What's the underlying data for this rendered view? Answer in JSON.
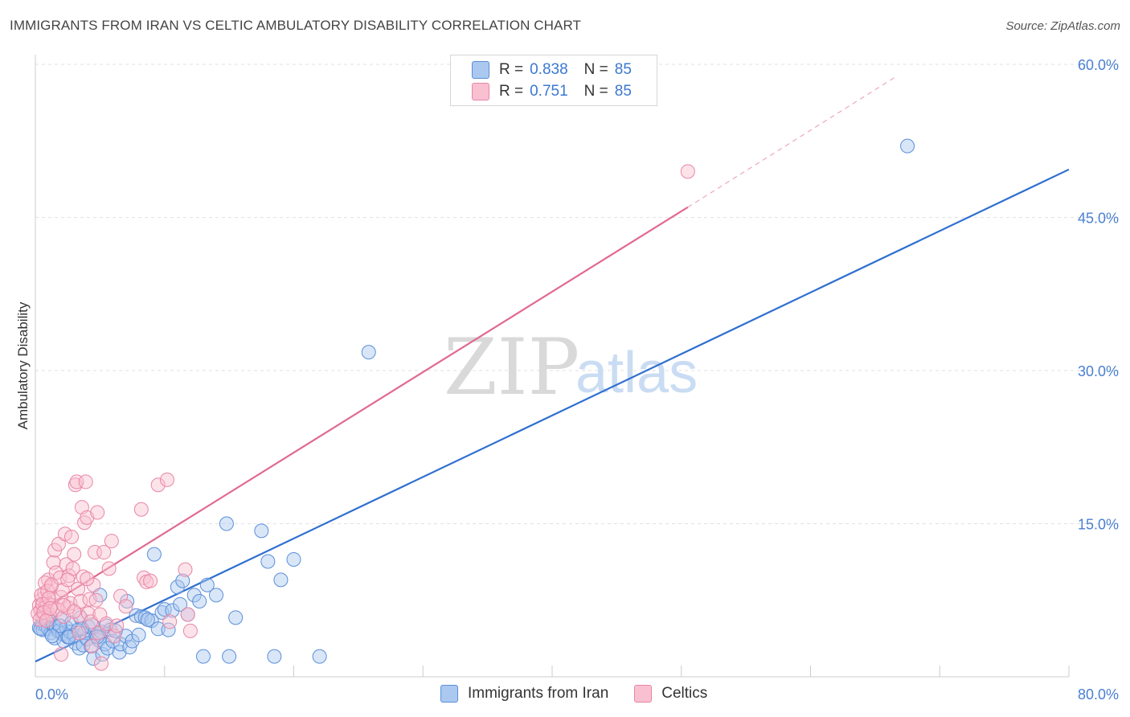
{
  "title": "IMMIGRANTS FROM IRAN VS CELTIC AMBULATORY DISABILITY CORRELATION CHART",
  "source": "Source: ZipAtlas.com",
  "watermark": {
    "zip": "ZIP",
    "atlas": "atlas"
  },
  "legend_top": [
    {
      "r_label": "R =",
      "r_value": "0.838",
      "n_label": "N =",
      "n_value": "85",
      "color": "#aac8f0",
      "border": "#5b8fd8"
    },
    {
      "r_label": "R =",
      "r_value": "0.751",
      "n_label": "N =",
      "n_value": "85",
      "color": "#f8c0d0",
      "border": "#e986a6"
    }
  ],
  "legend_bottom": [
    {
      "label": "Immigrants from Iran",
      "color": "#aac8f0",
      "border": "#5b8fd8"
    },
    {
      "label": "Celtics",
      "color": "#f8c0d0",
      "border": "#e986a6"
    }
  ],
  "chart_data": {
    "type": "scatter",
    "title": "IMMIGRANTS FROM IRAN VS CELTIC AMBULATORY DISABILITY CORRELATION CHART",
    "xlabel": "",
    "ylabel": "Ambulatory Disability",
    "xlim": [
      0,
      80
    ],
    "ylim": [
      0,
      60
    ],
    "x_tick_labels": {
      "0": "0.0%",
      "80": "80.0%"
    },
    "y_ticks": [
      15,
      30,
      45,
      60
    ],
    "y_tick_labels": [
      "15.0%",
      "30.0%",
      "45.0%",
      "60.0%"
    ],
    "grid": true,
    "legend": "top-center",
    "series": [
      {
        "name": "Immigrants from Iran",
        "color": "#5b8fd8",
        "fill": "#aac8f0",
        "trend_color": "#2f6fd0",
        "trend": {
          "x0": 0,
          "y0": 1.5,
          "x1": 80,
          "y1": 49.7,
          "dashed_to": null
        },
        "points": [
          [
            0.3,
            4.8
          ],
          [
            0.5,
            5.2
          ],
          [
            0.6,
            4.6
          ],
          [
            0.8,
            5.0
          ],
          [
            1.0,
            4.7
          ],
          [
            1.1,
            5.4
          ],
          [
            1.2,
            4.3
          ],
          [
            1.4,
            5.1
          ],
          [
            1.5,
            3.8
          ],
          [
            1.6,
            4.9
          ],
          [
            1.8,
            4.5
          ],
          [
            2.0,
            5.6
          ],
          [
            2.1,
            4.2
          ],
          [
            2.2,
            3.5
          ],
          [
            2.4,
            4.8
          ],
          [
            2.5,
            3.9
          ],
          [
            2.7,
            4.4
          ],
          [
            2.8,
            5.3
          ],
          [
            3.0,
            4.1
          ],
          [
            3.1,
            3.3
          ],
          [
            3.3,
            4.6
          ],
          [
            3.4,
            2.8
          ],
          [
            3.5,
            5.8
          ],
          [
            3.7,
            3.1
          ],
          [
            3.8,
            4.3
          ],
          [
            4.0,
            3.7
          ],
          [
            4.1,
            4.9
          ],
          [
            4.3,
            3.0
          ],
          [
            4.4,
            5.1
          ],
          [
            4.5,
            1.8
          ],
          [
            4.7,
            4.0
          ],
          [
            4.9,
            3.6
          ],
          [
            5.0,
            8.0
          ],
          [
            5.1,
            4.4
          ],
          [
            5.2,
            2.2
          ],
          [
            5.4,
            3.2
          ],
          [
            5.5,
            5.0
          ],
          [
            5.6,
            2.8
          ],
          [
            5.8,
            4.6
          ],
          [
            6.0,
            3.5
          ],
          [
            6.5,
            2.4
          ],
          [
            6.6,
            3.2
          ],
          [
            7.0,
            4.0
          ],
          [
            7.1,
            7.4
          ],
          [
            7.3,
            2.9
          ],
          [
            7.5,
            3.5
          ],
          [
            7.8,
            6.0
          ],
          [
            8.0,
            4.1
          ],
          [
            8.2,
            5.9
          ],
          [
            8.5,
            5.8
          ],
          [
            9.0,
            5.5
          ],
          [
            9.2,
            12.0
          ],
          [
            9.5,
            4.7
          ],
          [
            9.8,
            6.3
          ],
          [
            10.0,
            6.6
          ],
          [
            10.3,
            4.6
          ],
          [
            10.6,
            6.5
          ],
          [
            11.0,
            8.8
          ],
          [
            11.2,
            7.1
          ],
          [
            11.4,
            9.4
          ],
          [
            11.8,
            6.1
          ],
          [
            12.3,
            8.0
          ],
          [
            12.7,
            7.4
          ],
          [
            13.0,
            2.0
          ],
          [
            13.3,
            9.0
          ],
          [
            14.0,
            8.0
          ],
          [
            15.0,
            2.0
          ],
          [
            15.5,
            5.8
          ],
          [
            17.5,
            14.3
          ],
          [
            18.0,
            11.3
          ],
          [
            18.5,
            2.0
          ],
          [
            19.0,
            9.5
          ],
          [
            20.0,
            11.5
          ],
          [
            22.0,
            2.0
          ],
          [
            25.8,
            31.8
          ],
          [
            67.5,
            52.0
          ],
          [
            1.9,
            5.0
          ],
          [
            2.6,
            3.9
          ],
          [
            3.6,
            4.7
          ],
          [
            4.8,
            3.9
          ],
          [
            6.2,
            4.5
          ],
          [
            8.7,
            5.6
          ],
          [
            14.8,
            15.0
          ],
          [
            1.3,
            4.0
          ],
          [
            0.4,
            4.7
          ]
        ]
      },
      {
        "name": "Celtics",
        "color": "#e986a6",
        "fill": "#f8c0d0",
        "trend_color": "#e06a92",
        "trend": {
          "x0": 0,
          "y0": 6.2,
          "x1": 50.5,
          "y1": 46.0,
          "dashed_to": [
            66.5,
            58.7
          ]
        },
        "points": [
          [
            0.3,
            7.0
          ],
          [
            0.4,
            6.5
          ],
          [
            0.5,
            7.6
          ],
          [
            0.6,
            5.8
          ],
          [
            0.7,
            8.2
          ],
          [
            0.8,
            6.9
          ],
          [
            0.9,
            7.3
          ],
          [
            1.0,
            9.5
          ],
          [
            1.1,
            6.1
          ],
          [
            1.2,
            8.8
          ],
          [
            1.3,
            7.0
          ],
          [
            1.4,
            11.2
          ],
          [
            1.5,
            12.4
          ],
          [
            1.6,
            10.2
          ],
          [
            1.7,
            6.6
          ],
          [
            1.8,
            13.0
          ],
          [
            1.9,
            9.7
          ],
          [
            2.0,
            7.8
          ],
          [
            2.1,
            8.5
          ],
          [
            2.2,
            5.9
          ],
          [
            2.3,
            14.0
          ],
          [
            2.4,
            11.0
          ],
          [
            2.5,
            6.8
          ],
          [
            2.6,
            9.9
          ],
          [
            2.7,
            7.2
          ],
          [
            2.8,
            13.7
          ],
          [
            2.9,
            10.6
          ],
          [
            3.0,
            12.0
          ],
          [
            3.1,
            18.8
          ],
          [
            3.2,
            19.1
          ],
          [
            3.3,
            8.6
          ],
          [
            3.4,
            6.0
          ],
          [
            3.5,
            7.4
          ],
          [
            3.6,
            16.6
          ],
          [
            3.7,
            9.8
          ],
          [
            3.8,
            15.1
          ],
          [
            3.9,
            19.1
          ],
          [
            4.0,
            15.6
          ],
          [
            4.1,
            6.2
          ],
          [
            4.2,
            7.6
          ],
          [
            4.3,
            5.4
          ],
          [
            4.4,
            3.0
          ],
          [
            4.5,
            9.0
          ],
          [
            4.6,
            12.2
          ],
          [
            4.8,
            16.1
          ],
          [
            4.9,
            4.3
          ],
          [
            5.0,
            6.1
          ],
          [
            5.1,
            1.3
          ],
          [
            5.3,
            12.2
          ],
          [
            5.5,
            5.2
          ],
          [
            5.7,
            10.6
          ],
          [
            5.9,
            13.3
          ],
          [
            6.1,
            4.0
          ],
          [
            6.3,
            5.0
          ],
          [
            6.6,
            7.9
          ],
          [
            7.0,
            6.9
          ],
          [
            8.2,
            16.4
          ],
          [
            8.4,
            9.7
          ],
          [
            8.6,
            9.3
          ],
          [
            8.9,
            9.4
          ],
          [
            9.5,
            18.8
          ],
          [
            10.2,
            19.3
          ],
          [
            10.4,
            5.4
          ],
          [
            11.6,
            10.5
          ],
          [
            11.8,
            6.1
          ],
          [
            12.0,
            4.5
          ],
          [
            50.5,
            49.5
          ],
          [
            0.2,
            6.2
          ],
          [
            0.35,
            5.6
          ],
          [
            0.45,
            8.0
          ],
          [
            0.55,
            7.1
          ],
          [
            0.65,
            6.3
          ],
          [
            0.75,
            9.2
          ],
          [
            0.85,
            5.5
          ],
          [
            0.95,
            8.4
          ],
          [
            1.05,
            7.7
          ],
          [
            1.15,
            6.7
          ],
          [
            1.25,
            9.0
          ],
          [
            2.0,
            2.2
          ],
          [
            2.2,
            7.0
          ],
          [
            2.5,
            9.5
          ],
          [
            3.0,
            6.4
          ],
          [
            3.4,
            4.3
          ],
          [
            4.0,
            9.6
          ],
          [
            4.7,
            7.5
          ]
        ]
      }
    ]
  }
}
